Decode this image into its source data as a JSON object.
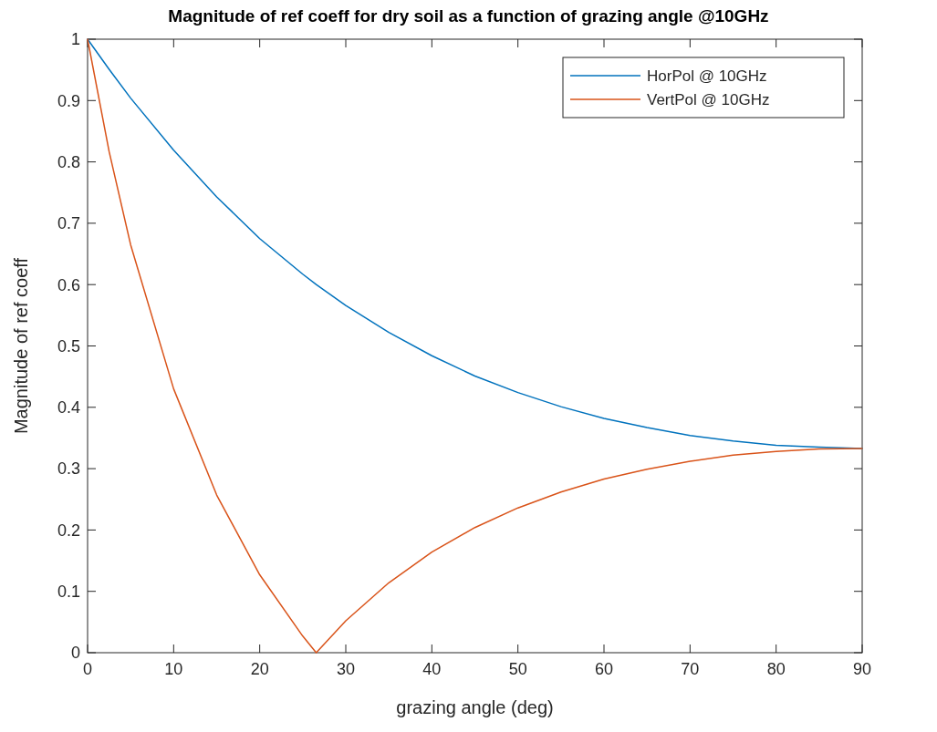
{
  "chart_data": {
    "type": "line",
    "title": "Magnitude of ref coeff for dry soil as a function of grazing angle @10GHz",
    "xlabel": "grazing angle (deg)",
    "ylabel": "Magnitude of ref coeff",
    "x": [
      0,
      2.5,
      5,
      10,
      15,
      20,
      25,
      26.565,
      30,
      35,
      40,
      45,
      50,
      55,
      60,
      65,
      70,
      75,
      80,
      85,
      90
    ],
    "series": [
      {
        "name": "HorPol @ 10GHz",
        "color": "#0072bd",
        "values": [
          1,
          0.951,
          0.904,
          0.819,
          0.743,
          0.675,
          0.617,
          0.6,
          0.566,
          0.522,
          0.484,
          0.451,
          0.424,
          0.401,
          0.382,
          0.367,
          0.354,
          0.345,
          0.338,
          0.335,
          0.333
        ]
      },
      {
        "name": "VertPol @ 10GHz",
        "color": "#d95319",
        "values": [
          1,
          0.817,
          0.665,
          0.43,
          0.257,
          0.127,
          0.027,
          0,
          0.052,
          0.114,
          0.164,
          0.204,
          0.236,
          0.262,
          0.283,
          0.299,
          0.312,
          0.322,
          0.328,
          0.332,
          0.333
        ]
      }
    ],
    "xlim": [
      0,
      90
    ],
    "xticks": [
      0,
      10,
      20,
      30,
      40,
      50,
      60,
      70,
      80,
      90
    ],
    "ylim": [
      0,
      1
    ],
    "yticks": [
      0,
      0.1,
      0.2,
      0.3,
      0.4,
      0.5,
      0.6,
      0.7,
      0.8,
      0.9,
      1
    ],
    "legend": "top right",
    "marker": "none",
    "line_style": "solid"
  }
}
